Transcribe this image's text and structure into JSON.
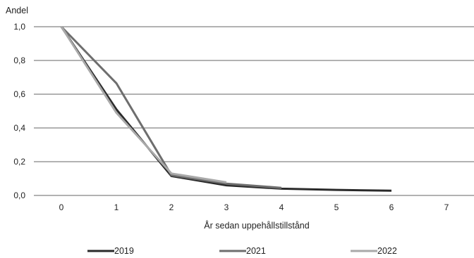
{
  "chart_data": {
    "type": "line",
    "ylabel": "Andel",
    "xlabel": "År sedan uppehållstillstånd",
    "x": [
      0,
      1,
      2,
      3,
      4,
      5,
      6
    ],
    "x_ticks": [
      "0",
      "1",
      "2",
      "3",
      "4",
      "5",
      "6",
      "7"
    ],
    "xlim": [
      -0.5,
      7.5
    ],
    "ylim": [
      0,
      1.0
    ],
    "y_ticks": [
      "0,0",
      "0,2",
      "0,4",
      "0,6",
      "0,8",
      "1,0"
    ],
    "grid": true,
    "legend_position": "bottom",
    "series": [
      {
        "name": "2019",
        "color": "#2a2a2a",
        "values": [
          1.0,
          0.51,
          0.115,
          0.06,
          0.04,
          0.033,
          0.028
        ]
      },
      {
        "name": "2021",
        "color": "#6e6e6e",
        "values": [
          1.0,
          0.665,
          0.12,
          0.07,
          0.045,
          null,
          null
        ]
      },
      {
        "name": "2022",
        "color": "#a9a9a9",
        "values": [
          1.0,
          0.49,
          0.13,
          0.078,
          null,
          null,
          null
        ]
      }
    ]
  }
}
